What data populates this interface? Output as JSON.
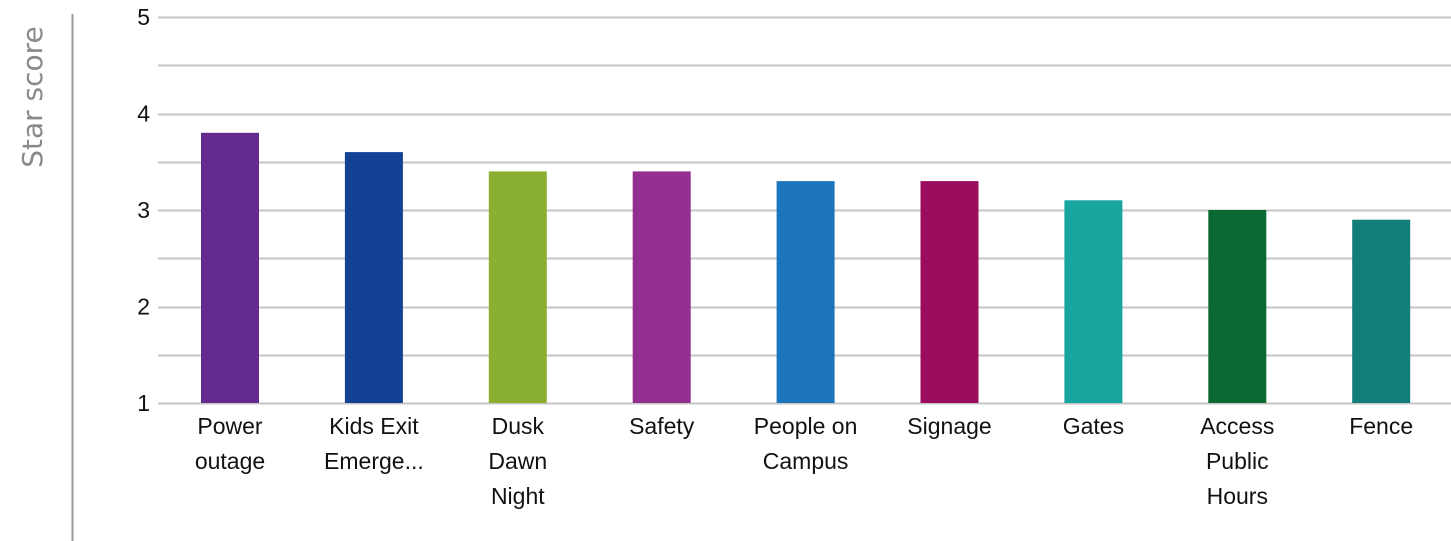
{
  "chart_data": {
    "type": "bar",
    "title": "",
    "xlabel": "",
    "ylabel": "Star score",
    "ylim": [
      1,
      5
    ],
    "yticks": [
      1,
      2,
      3,
      4,
      5
    ],
    "minor_gridlines": [
      1.5,
      2.5,
      3.5,
      4.5
    ],
    "grid": true,
    "legend": "none",
    "categories": [
      [
        "Power",
        "outage"
      ],
      [
        "Kids Exit",
        "Emerge..."
      ],
      [
        "Dusk",
        "Dawn",
        "Night"
      ],
      [
        "Safety"
      ],
      [
        "People on",
        "Campus"
      ],
      [
        "Signage"
      ],
      [
        "Gates"
      ],
      [
        "Access",
        "Public",
        "Hours"
      ],
      [
        "Fence"
      ]
    ],
    "values": [
      3.8,
      3.6,
      3.4,
      3.4,
      3.3,
      3.3,
      3.1,
      3.0,
      2.9
    ],
    "colors": [
      "#652a8e",
      "#134294",
      "#8aaf31",
      "#93308f",
      "#1d76bc",
      "#9b0d5c",
      "#18a59f",
      "#0b6a33",
      "#137d78"
    ],
    "gridline_color": "#c6c6c6",
    "axis_line_color": "#9a9a9a"
  }
}
